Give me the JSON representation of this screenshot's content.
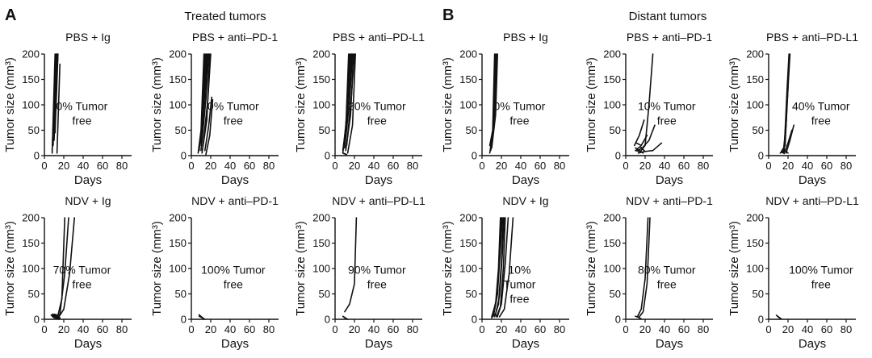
{
  "figure": {
    "panel_a_letter": "A",
    "panel_a_title": "Treated tumors",
    "panel_b_letter": "B",
    "panel_b_title": "Distant tumors"
  },
  "chart_data": [
    {
      "type": "line",
      "panel": "A",
      "title": "PBS + Ig",
      "xlabel": "Days",
      "ylabel": "Tumor size (mm³)",
      "xlim": [
        0,
        90
      ],
      "ylim": [
        0,
        200
      ],
      "xticks": [
        0,
        20,
        40,
        60,
        80
      ],
      "yticks": [
        0,
        50,
        100,
        150,
        200
      ],
      "annotation": [
        "0% Tumor",
        "free"
      ],
      "series": [
        {
          "x": [
            8,
            11
          ],
          "y": [
            5,
            200
          ]
        },
        {
          "x": [
            8,
            12
          ],
          "y": [
            10,
            200
          ]
        },
        {
          "x": [
            9,
            12
          ],
          "y": [
            20,
            200
          ]
        },
        {
          "x": [
            10,
            13
          ],
          "y": [
            30,
            200
          ]
        },
        {
          "x": [
            10,
            14
          ],
          "y": [
            60,
            200
          ]
        },
        {
          "x": [
            11,
            14
          ],
          "y": [
            45,
            200
          ]
        },
        {
          "x": [
            13,
            16
          ],
          "y": [
            5,
            180
          ]
        }
      ]
    },
    {
      "type": "line",
      "panel": "A",
      "title": "PBS + anti–PD-1",
      "xlabel": "Days",
      "ylabel": "Tumor size (mm³)",
      "xlim": [
        0,
        90
      ],
      "ylim": [
        0,
        200
      ],
      "xticks": [
        0,
        20,
        40,
        60,
        80
      ],
      "yticks": [
        0,
        50,
        100,
        150,
        200
      ],
      "annotation": [
        "0% Tumor",
        "free"
      ],
      "series": [
        {
          "x": [
            7,
            10,
            13
          ],
          "y": [
            5,
            50,
            200
          ]
        },
        {
          "x": [
            8,
            11,
            14
          ],
          "y": [
            10,
            60,
            200
          ]
        },
        {
          "x": [
            8,
            12,
            15
          ],
          "y": [
            15,
            80,
            200
          ]
        },
        {
          "x": [
            9,
            13,
            16
          ],
          "y": [
            20,
            100,
            200
          ]
        },
        {
          "x": [
            10,
            14,
            17
          ],
          "y": [
            10,
            90,
            200
          ]
        },
        {
          "x": [
            10,
            15,
            18
          ],
          "y": [
            25,
            110,
            200
          ]
        },
        {
          "x": [
            11,
            16,
            19
          ],
          "y": [
            5,
            70,
            200
          ]
        },
        {
          "x": [
            12,
            17,
            20
          ],
          "y": [
            20,
            110,
            200
          ]
        },
        {
          "x": [
            14,
            18,
            21
          ],
          "y": [
            10,
            60,
            115
          ]
        },
        {
          "x": [
            15,
            19,
            22
          ],
          "y": [
            2,
            40,
            110
          ]
        }
      ]
    },
    {
      "type": "line",
      "panel": "A",
      "title": "PBS + anti–PD-L1",
      "xlabel": "Days",
      "ylabel": "Tumor size (mm³)",
      "xlim": [
        0,
        90
      ],
      "ylim": [
        0,
        200
      ],
      "xticks": [
        0,
        20,
        40,
        60,
        80
      ],
      "yticks": [
        0,
        50,
        100,
        150,
        200
      ],
      "annotation": [
        "20% Tumor",
        "free"
      ],
      "series": [
        {
          "x": [
            8,
            11,
            14
          ],
          "y": [
            5,
            50,
            200
          ]
        },
        {
          "x": [
            8,
            12,
            15
          ],
          "y": [
            10,
            70,
            200
          ]
        },
        {
          "x": [
            9,
            13,
            16
          ],
          "y": [
            20,
            100,
            200
          ]
        },
        {
          "x": [
            10,
            14,
            17
          ],
          "y": [
            15,
            90,
            200
          ]
        },
        {
          "x": [
            10,
            15,
            18
          ],
          "y": [
            25,
            110,
            200
          ]
        },
        {
          "x": [
            11,
            16,
            19
          ],
          "y": [
            10,
            80,
            200
          ]
        },
        {
          "x": [
            12,
            17,
            20
          ],
          "y": [
            20,
            120,
            200
          ]
        },
        {
          "x": [
            13,
            18,
            21
          ],
          "y": [
            5,
            60,
            200
          ]
        },
        {
          "x": [
            8,
            11
          ],
          "y": [
            5,
            3
          ]
        },
        {
          "x": [
            9,
            12
          ],
          "y": [
            4,
            2
          ]
        }
      ]
    },
    {
      "type": "line",
      "panel": "A",
      "title": "NDV + Ig",
      "xlabel": "Days",
      "ylabel": "Tumor size (mm³)",
      "xlim": [
        0,
        90
      ],
      "ylim": [
        0,
        200
      ],
      "xticks": [
        0,
        20,
        40,
        60,
        80
      ],
      "yticks": [
        0,
        50,
        100,
        150,
        200
      ],
      "annotation": [
        "70% Tumor",
        "free"
      ],
      "series": [
        {
          "x": [
            10,
            14,
            18,
            21
          ],
          "y": [
            10,
            8,
            40,
            200
          ]
        },
        {
          "x": [
            12,
            16,
            21,
            25
          ],
          "y": [
            5,
            10,
            90,
            200
          ]
        },
        {
          "x": [
            15,
            20,
            26,
            31
          ],
          "y": [
            5,
            20,
            90,
            200
          ]
        },
        {
          "x": [
            8,
            12,
            15
          ],
          "y": [
            10,
            8,
            4
          ]
        },
        {
          "x": [
            9,
            13,
            16
          ],
          "y": [
            8,
            6,
            3
          ]
        },
        {
          "x": [
            8,
            11,
            14
          ],
          "y": [
            6,
            4,
            2
          ]
        },
        {
          "x": [
            10,
            13,
            16
          ],
          "y": [
            5,
            3,
            1
          ]
        },
        {
          "x": [
            7,
            10,
            13
          ],
          "y": [
            8,
            5,
            2
          ]
        },
        {
          "x": [
            9,
            12,
            15
          ],
          "y": [
            4,
            2,
            0
          ]
        },
        {
          "x": [
            8,
            12,
            16
          ],
          "y": [
            7,
            5,
            2
          ]
        }
      ]
    },
    {
      "type": "line",
      "panel": "A",
      "title": "NDV + anti–PD-1",
      "xlabel": "Days",
      "ylabel": "Tumor size (mm³)",
      "xlim": [
        0,
        90
      ],
      "ylim": [
        0,
        200
      ],
      "xticks": [
        0,
        20,
        40,
        60,
        80
      ],
      "yticks": [
        0,
        50,
        100,
        150,
        200
      ],
      "annotation": [
        "100% Tumor",
        "free"
      ],
      "series": [
        {
          "x": [
            8,
            10,
            12
          ],
          "y": [
            9,
            5,
            2
          ]
        },
        {
          "x": [
            9,
            11,
            13
          ],
          "y": [
            7,
            4,
            1
          ]
        },
        {
          "x": [
            8,
            11,
            14
          ],
          "y": [
            6,
            3,
            0
          ]
        }
      ]
    },
    {
      "type": "line",
      "panel": "A",
      "title": "NDV + anti–PD-L1",
      "xlabel": "Days",
      "ylabel": "Tumor size (mm³)",
      "xlim": [
        0,
        90
      ],
      "ylim": [
        0,
        200
      ],
      "xticks": [
        0,
        20,
        40,
        60,
        80
      ],
      "yticks": [
        0,
        50,
        100,
        150,
        200
      ],
      "annotation": [
        "90% Tumor",
        "free"
      ],
      "series": [
        {
          "x": [
            10,
            15,
            20,
            22
          ],
          "y": [
            15,
            30,
            70,
            200
          ]
        },
        {
          "x": [
            8,
            10,
            12
          ],
          "y": [
            6,
            3,
            1
          ]
        },
        {
          "x": [
            9,
            11,
            13
          ],
          "y": [
            5,
            2,
            0
          ]
        }
      ]
    },
    {
      "type": "line",
      "panel": "B",
      "title": "PBS + Ig",
      "xlabel": "Days",
      "ylabel": "Tumor size (mm³)",
      "xlim": [
        0,
        90
      ],
      "ylim": [
        0,
        200
      ],
      "xticks": [
        0,
        20,
        40,
        60,
        80
      ],
      "yticks": [
        0,
        50,
        100,
        150,
        200
      ],
      "annotation": [
        "0% Tumor",
        "free"
      ],
      "series": [
        {
          "x": [
            8,
            12,
            14
          ],
          "y": [
            5,
            60,
            200
          ]
        },
        {
          "x": [
            9,
            13,
            15
          ],
          "y": [
            10,
            70,
            200
          ]
        },
        {
          "x": [
            10,
            14,
            16
          ],
          "y": [
            15,
            80,
            200
          ]
        },
        {
          "x": [
            8,
            11,
            13
          ],
          "y": [
            20,
            50,
            200
          ]
        }
      ]
    },
    {
      "type": "line",
      "panel": "B",
      "title": "PBS + anti–PD-1",
      "xlabel": "Days",
      "ylabel": "Tumor size (mm³)",
      "xlim": [
        0,
        90
      ],
      "ylim": [
        0,
        200
      ],
      "xticks": [
        0,
        20,
        40,
        60,
        80
      ],
      "yticks": [
        0,
        50,
        100,
        150,
        200
      ],
      "annotation": [
        "10% Tumor",
        "free"
      ],
      "series": [
        {
          "x": [
            10,
            15,
            20,
            24,
            28
          ],
          "y": [
            10,
            8,
            20,
            100,
            200
          ]
        },
        {
          "x": [
            9,
            14,
            19
          ],
          "y": [
            20,
            40,
            70
          ]
        },
        {
          "x": [
            11,
            16,
            22
          ],
          "y": [
            25,
            20,
            40
          ]
        },
        {
          "x": [
            12,
            17,
            24,
            30
          ],
          "y": [
            10,
            15,
            30,
            60
          ]
        },
        {
          "x": [
            13,
            19,
            28,
            37
          ],
          "y": [
            5,
            8,
            10,
            25
          ]
        },
        {
          "x": [
            10,
            14,
            18
          ],
          "y": [
            15,
            10,
            5
          ]
        },
        {
          "x": [
            11,
            15,
            20
          ],
          "y": [
            12,
            18,
            8
          ]
        }
      ]
    },
    {
      "type": "line",
      "panel": "B",
      "title": "PBS + anti–PD-L1",
      "xlabel": "Days",
      "ylabel": "Tumor size (mm³)",
      "xlim": [
        0,
        90
      ],
      "ylim": [
        0,
        200
      ],
      "xticks": [
        0,
        20,
        40,
        60,
        80
      ],
      "yticks": [
        0,
        50,
        100,
        150,
        200
      ],
      "annotation": [
        "40% Tumor",
        "free"
      ],
      "series": [
        {
          "x": [
            12,
            16,
            19,
            21
          ],
          "y": [
            5,
            10,
            130,
            200
          ]
        },
        {
          "x": [
            13,
            17,
            19,
            22
          ],
          "y": [
            8,
            20,
            100,
            200
          ]
        },
        {
          "x": [
            15,
            18,
            20
          ],
          "y": [
            5,
            60,
            135
          ]
        },
        {
          "x": [
            18,
            22,
            26
          ],
          "y": [
            5,
            30,
            60
          ]
        },
        {
          "x": [
            16,
            20,
            24
          ],
          "y": [
            4,
            25,
            50
          ]
        },
        {
          "x": [
            14,
            17,
            20
          ],
          "y": [
            6,
            10,
            5
          ]
        }
      ]
    },
    {
      "type": "line",
      "panel": "B",
      "title": "NDV + Ig",
      "xlabel": "Days",
      "ylabel": "Tumor size (mm³)",
      "xlim": [
        0,
        90
      ],
      "ylim": [
        0,
        200
      ],
      "xticks": [
        0,
        20,
        40,
        60,
        80
      ],
      "yticks": [
        0,
        50,
        100,
        150,
        200
      ],
      "annotation": [
        "10%",
        "Tumor",
        "free"
      ],
      "series": [
        {
          "x": [
            10,
            14,
            17,
            19
          ],
          "y": [
            5,
            30,
            100,
            200
          ]
        },
        {
          "x": [
            11,
            15,
            18,
            20
          ],
          "y": [
            10,
            40,
            120,
            200
          ]
        },
        {
          "x": [
            12,
            16,
            19,
            21
          ],
          "y": [
            8,
            50,
            140,
            200
          ]
        },
        {
          "x": [
            13,
            17,
            20,
            22
          ],
          "y": [
            5,
            30,
            110,
            200
          ]
        },
        {
          "x": [
            14,
            18,
            21,
            23
          ],
          "y": [
            10,
            45,
            130,
            200
          ]
        },
        {
          "x": [
            15,
            19,
            22,
            24
          ],
          "y": [
            5,
            25,
            100,
            200
          ]
        },
        {
          "x": [
            16,
            20,
            24,
            27
          ],
          "y": [
            6,
            30,
            110,
            200
          ]
        },
        {
          "x": [
            18,
            23,
            28,
            32
          ],
          "y": [
            5,
            20,
            90,
            200
          ]
        },
        {
          "x": [
            10,
            13,
            16
          ],
          "y": [
            3,
            10,
            5
          ]
        }
      ]
    },
    {
      "type": "line",
      "panel": "B",
      "title": "NDV + anti–PD-1",
      "xlabel": "Days",
      "ylabel": "Tumor size (mm³)",
      "xlim": [
        0,
        90
      ],
      "ylim": [
        0,
        200
      ],
      "xticks": [
        0,
        20,
        40,
        60,
        80
      ],
      "yticks": [
        0,
        50,
        100,
        150,
        200
      ],
      "annotation": [
        "80% Tumor",
        "free"
      ],
      "series": [
        {
          "x": [
            12,
            16,
            20,
            23
          ],
          "y": [
            5,
            20,
            80,
            200
          ]
        },
        {
          "x": [
            14,
            18,
            22,
            25
          ],
          "y": [
            5,
            15,
            70,
            200
          ]
        },
        {
          "x": [
            10,
            13,
            16
          ],
          "y": [
            6,
            4,
            1
          ]
        }
      ]
    },
    {
      "type": "line",
      "panel": "B",
      "title": "NDV + anti–PD-L1",
      "xlabel": "Days",
      "ylabel": "Tumor size (mm³)",
      "xlim": [
        0,
        90
      ],
      "ylim": [
        0,
        200
      ],
      "xticks": [
        0,
        20,
        40,
        60,
        80
      ],
      "yticks": [
        0,
        50,
        100,
        150,
        200
      ],
      "annotation": [
        "100% Tumor",
        "free"
      ],
      "series": [
        {
          "x": [
            8,
            10,
            12
          ],
          "y": [
            8,
            5,
            2
          ]
        },
        {
          "x": [
            9,
            11,
            13
          ],
          "y": [
            6,
            3,
            1
          ]
        }
      ]
    }
  ]
}
